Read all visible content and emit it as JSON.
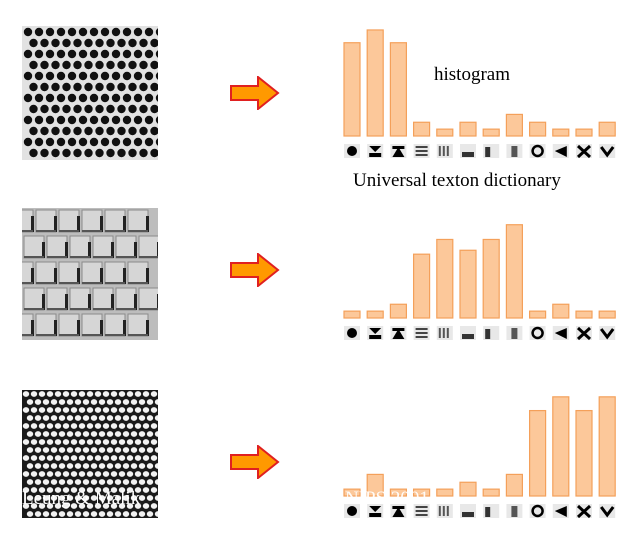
{
  "labels": {
    "histogram": "histogram",
    "dictionary": "Universal texton dictionary"
  },
  "credit": {
    "left": "Leung & Malik",
    "right": "NIPS 2001"
  },
  "chart_data": [
    {
      "type": "bar",
      "categories": [
        "t1",
        "t2",
        "t3",
        "t4",
        "t5",
        "t6",
        "t7",
        "t8",
        "t9",
        "t10",
        "t11",
        "t12"
      ],
      "values": [
        95,
        108,
        95,
        14,
        7,
        14,
        7,
        22,
        14,
        7,
        7,
        14
      ],
      "ylim": [
        0,
        110
      ]
    },
    {
      "type": "bar",
      "categories": [
        "t1",
        "t2",
        "t3",
        "t4",
        "t5",
        "t6",
        "t7",
        "t8",
        "t9",
        "t10",
        "t11",
        "t12"
      ],
      "values": [
        7,
        7,
        14,
        65,
        80,
        69,
        80,
        95,
        7,
        14,
        7,
        7
      ],
      "ylim": [
        0,
        110
      ]
    },
    {
      "type": "bar",
      "categories": [
        "t1",
        "t2",
        "t3",
        "t4",
        "t5",
        "t6",
        "t7",
        "t8",
        "t9",
        "t10",
        "t11",
        "t12"
      ],
      "values": [
        7,
        22,
        7,
        7,
        7,
        14,
        7,
        22,
        87,
        101,
        87,
        101
      ],
      "ylim": [
        0,
        110
      ]
    }
  ],
  "colors": {
    "bar_fill": "#fcc89a",
    "bar_stroke": "#f4a05a",
    "arrow_fill": "#ff9900",
    "arrow_stroke": "#e02020"
  }
}
